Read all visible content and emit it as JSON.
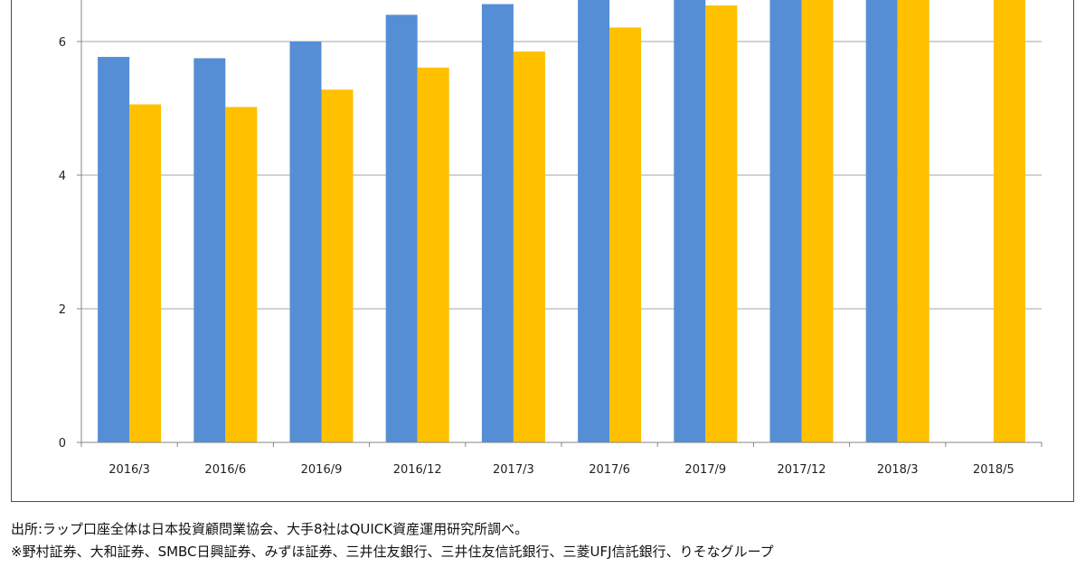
{
  "chart_data": {
    "type": "bar",
    "categories": [
      "2016/3",
      "2016/6",
      "2016/9",
      "2016/12",
      "2017/3",
      "2017/6",
      "2017/9",
      "2017/12",
      "2018/3",
      "2018/5"
    ],
    "series": [
      {
        "values": [
          5.77,
          5.75,
          6.0,
          6.4,
          6.56,
          6.8,
          6.9,
          7.0,
          7.0,
          null
        ],
        "color": "#558ed5"
      },
      {
        "values": [
          5.06,
          5.02,
          5.28,
          5.61,
          5.85,
          6.21,
          6.54,
          6.8,
          6.9,
          7.0
        ],
        "color": "#ffc000"
      }
    ],
    "yticks": [
      0,
      2,
      4,
      6
    ],
    "ylim": [
      0,
      8
    ],
    "grid": true,
    "gridline_color": "#a6a6a6"
  },
  "notes": {
    "source": "出所:ラップ口座全体は日本投資顧問業協会、大手8社はQUICK資産運用研究所調べ。",
    "members": "※野村証券、大和証券、SMBC日興証券、みずほ証券、三井住友銀行、三井住友信託銀行、三菱UFJ信託銀行、りそなグループ"
  }
}
